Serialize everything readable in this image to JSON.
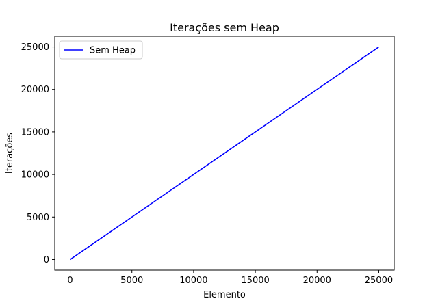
{
  "chart_data": {
    "type": "line",
    "title": "Iterações sem Heap",
    "xlabel": "Elemento",
    "ylabel": "Iterações",
    "xlim": [
      -1250,
      26250
    ],
    "ylim": [
      -1250,
      26250
    ],
    "xticks": [
      0,
      5000,
      10000,
      15000,
      20000,
      25000
    ],
    "yticks": [
      0,
      5000,
      10000,
      15000,
      20000,
      25000
    ],
    "grid": false,
    "legend_position": "top-left",
    "series": [
      {
        "name": "Sem Heap",
        "color": "#0000ff",
        "x": [
          0,
          25000
        ],
        "y": [
          0,
          25000
        ]
      }
    ]
  }
}
